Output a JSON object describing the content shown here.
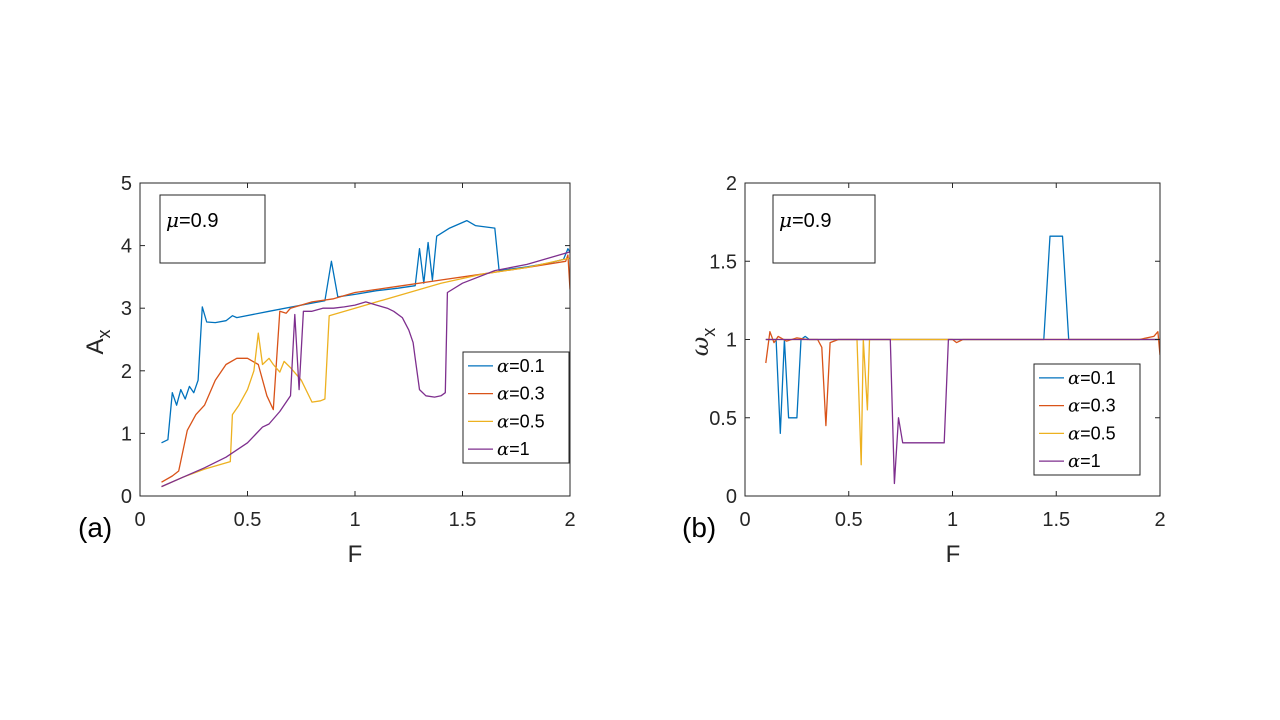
{
  "chart_data": [
    {
      "type": "line",
      "panel_label": "(a)",
      "xlabel": "F",
      "ylabel": "A",
      "ylabel_sub": "x",
      "xlim": [
        0,
        2
      ],
      "ylim": [
        0,
        5
      ],
      "xticks": [
        0,
        0.5,
        1,
        1.5,
        2
      ],
      "xtick_labels": [
        "0",
        "0.5",
        "1",
        "1.5",
        "2"
      ],
      "yticks": [
        0,
        1,
        2,
        3,
        4,
        5
      ],
      "ytick_labels": [
        "0",
        "1",
        "2",
        "3",
        "4",
        "5"
      ],
      "annotation": {
        "symbol": "μ",
        "text": "=0.9"
      },
      "legend_position": "lower-right",
      "series": [
        {
          "name": "α=0.1",
          "symbol": "α",
          "text": "=0.1",
          "color": "#0072BD",
          "points": [
            [
              0.1,
              0.85
            ],
            [
              0.13,
              0.9
            ],
            [
              0.15,
              1.65
            ],
            [
              0.17,
              1.45
            ],
            [
              0.19,
              1.7
            ],
            [
              0.21,
              1.55
            ],
            [
              0.23,
              1.75
            ],
            [
              0.25,
              1.65
            ],
            [
              0.27,
              1.85
            ],
            [
              0.29,
              3.02
            ],
            [
              0.31,
              2.78
            ],
            [
              0.35,
              2.77
            ],
            [
              0.4,
              2.8
            ],
            [
              0.43,
              2.88
            ],
            [
              0.45,
              2.85
            ],
            [
              0.6,
              2.95
            ],
            [
              0.75,
              3.05
            ],
            [
              0.86,
              3.12
            ],
            [
              0.89,
              3.75
            ],
            [
              0.92,
              3.18
            ],
            [
              1.0,
              3.22
            ],
            [
              1.1,
              3.28
            ],
            [
              1.2,
              3.32
            ],
            [
              1.28,
              3.36
            ],
            [
              1.3,
              3.95
            ],
            [
              1.32,
              3.4
            ],
            [
              1.34,
              4.05
            ],
            [
              1.36,
              3.45
            ],
            [
              1.38,
              4.15
            ],
            [
              1.44,
              4.28
            ],
            [
              1.52,
              4.4
            ],
            [
              1.56,
              4.32
            ],
            [
              1.65,
              4.28
            ],
            [
              1.67,
              3.6
            ],
            [
              1.8,
              3.66
            ],
            [
              1.9,
              3.72
            ],
            [
              1.97,
              3.78
            ],
            [
              1.99,
              3.95
            ],
            [
              2.0,
              3.9
            ]
          ]
        },
        {
          "name": "α=0.3",
          "symbol": "α",
          "text": "=0.3",
          "color": "#D95319",
          "points": [
            [
              0.1,
              0.22
            ],
            [
              0.15,
              0.32
            ],
            [
              0.18,
              0.4
            ],
            [
              0.22,
              1.05
            ],
            [
              0.26,
              1.3
            ],
            [
              0.3,
              1.45
            ],
            [
              0.35,
              1.85
            ],
            [
              0.4,
              2.1
            ],
            [
              0.45,
              2.2
            ],
            [
              0.5,
              2.2
            ],
            [
              0.55,
              2.1
            ],
            [
              0.59,
              1.6
            ],
            [
              0.62,
              1.38
            ],
            [
              0.65,
              2.95
            ],
            [
              0.68,
              2.92
            ],
            [
              0.7,
              3.0
            ],
            [
              0.8,
              3.1
            ],
            [
              0.9,
              3.15
            ],
            [
              1.0,
              3.25
            ],
            [
              1.2,
              3.35
            ],
            [
              1.4,
              3.45
            ],
            [
              1.6,
              3.55
            ],
            [
              1.8,
              3.65
            ],
            [
              1.98,
              3.75
            ],
            [
              1.99,
              3.85
            ],
            [
              2.0,
              3.3
            ]
          ]
        },
        {
          "name": "α=0.5",
          "symbol": "α",
          "text": "=0.5",
          "color": "#EDB120",
          "points": [
            [
              0.1,
              0.15
            ],
            [
              0.2,
              0.3
            ],
            [
              0.3,
              0.43
            ],
            [
              0.42,
              0.55
            ],
            [
              0.43,
              1.3
            ],
            [
              0.46,
              1.45
            ],
            [
              0.5,
              1.7
            ],
            [
              0.53,
              2.0
            ],
            [
              0.55,
              2.6
            ],
            [
              0.57,
              2.1
            ],
            [
              0.6,
              2.2
            ],
            [
              0.62,
              2.1
            ],
            [
              0.65,
              1.98
            ],
            [
              0.67,
              2.15
            ],
            [
              0.7,
              2.05
            ],
            [
              0.75,
              1.85
            ],
            [
              0.8,
              1.5
            ],
            [
              0.84,
              1.52
            ],
            [
              0.86,
              1.55
            ],
            [
              0.88,
              2.88
            ],
            [
              0.9,
              2.9
            ],
            [
              1.0,
              3.0
            ],
            [
              1.2,
              3.2
            ],
            [
              1.4,
              3.4
            ],
            [
              1.6,
              3.55
            ],
            [
              1.8,
              3.65
            ],
            [
              2.0,
              3.8
            ]
          ]
        },
        {
          "name": "α=1",
          "symbol": "α",
          "text": "=1",
          "color": "#7E2F8E",
          "points": [
            [
              0.1,
              0.15
            ],
            [
              0.2,
              0.3
            ],
            [
              0.3,
              0.45
            ],
            [
              0.4,
              0.62
            ],
            [
              0.5,
              0.85
            ],
            [
              0.57,
              1.1
            ],
            [
              0.6,
              1.15
            ],
            [
              0.65,
              1.35
            ],
            [
              0.7,
              1.6
            ],
            [
              0.72,
              2.9
            ],
            [
              0.74,
              1.7
            ],
            [
              0.76,
              2.95
            ],
            [
              0.8,
              2.95
            ],
            [
              0.85,
              3.0
            ],
            [
              0.9,
              3.0
            ],
            [
              0.95,
              3.02
            ],
            [
              1.0,
              3.05
            ],
            [
              1.05,
              3.1
            ],
            [
              1.1,
              3.05
            ],
            [
              1.15,
              3.0
            ],
            [
              1.18,
              2.95
            ],
            [
              1.22,
              2.85
            ],
            [
              1.25,
              2.65
            ],
            [
              1.27,
              2.45
            ],
            [
              1.28,
              2.2
            ],
            [
              1.3,
              1.7
            ],
            [
              1.33,
              1.6
            ],
            [
              1.37,
              1.58
            ],
            [
              1.4,
              1.6
            ],
            [
              1.42,
              1.65
            ],
            [
              1.43,
              3.25
            ],
            [
              1.5,
              3.4
            ],
            [
              1.65,
              3.6
            ],
            [
              1.8,
              3.7
            ],
            [
              1.9,
              3.8
            ],
            [
              2.0,
              3.9
            ]
          ]
        }
      ]
    },
    {
      "type": "line",
      "panel_label": "(b)",
      "xlabel": "F",
      "ylabel": "ω",
      "ylabel_sub": "x",
      "xlim": [
        0,
        2
      ],
      "ylim": [
        0,
        2
      ],
      "xticks": [
        0,
        0.5,
        1,
        1.5,
        2
      ],
      "xtick_labels": [
        "0",
        "0.5",
        "1",
        "1.5",
        "2"
      ],
      "yticks": [
        0,
        0.5,
        1,
        1.5,
        2
      ],
      "ytick_labels": [
        "0",
        "0.5",
        "1",
        "1.5",
        "2"
      ],
      "annotation": {
        "symbol": "μ",
        "text": "=0.9"
      },
      "legend_position": "lower-right",
      "series": [
        {
          "name": "α=0.1",
          "symbol": "α",
          "text": "=0.1",
          "color": "#0072BD",
          "points": [
            [
              0.1,
              1.0
            ],
            [
              0.13,
              1.0
            ],
            [
              0.15,
              1.0
            ],
            [
              0.17,
              0.4
            ],
            [
              0.19,
              1.0
            ],
            [
              0.21,
              0.5
            ],
            [
              0.25,
              0.5
            ],
            [
              0.27,
              1.0
            ],
            [
              0.29,
              1.02
            ],
            [
              0.31,
              1.0
            ],
            [
              1.44,
              1.0
            ],
            [
              1.47,
              1.66
            ],
            [
              1.53,
              1.66
            ],
            [
              1.56,
              1.0
            ],
            [
              2.0,
              1.0
            ]
          ]
        },
        {
          "name": "α=0.3",
          "symbol": "α",
          "text": "=0.3",
          "color": "#D95319",
          "points": [
            [
              0.1,
              0.85
            ],
            [
              0.12,
              1.05
            ],
            [
              0.14,
              0.98
            ],
            [
              0.16,
              1.02
            ],
            [
              0.2,
              0.99
            ],
            [
              0.25,
              1.01
            ],
            [
              0.3,
              1.0
            ],
            [
              0.35,
              1.0
            ],
            [
              0.37,
              0.95
            ],
            [
              0.39,
              0.45
            ],
            [
              0.41,
              0.98
            ],
            [
              0.45,
              1.0
            ],
            [
              1.0,
              1.0
            ],
            [
              1.02,
              0.98
            ],
            [
              1.05,
              1.0
            ],
            [
              1.9,
              1.0
            ],
            [
              1.97,
              1.02
            ],
            [
              1.99,
              1.05
            ],
            [
              2.0,
              0.9
            ]
          ]
        },
        {
          "name": "α=0.5",
          "symbol": "α",
          "text": "=0.5",
          "color": "#EDB120",
          "points": [
            [
              0.1,
              1.0
            ],
            [
              0.54,
              1.0
            ],
            [
              0.56,
              0.2
            ],
            [
              0.57,
              1.0
            ],
            [
              0.59,
              0.55
            ],
            [
              0.6,
              1.0
            ],
            [
              2.0,
              1.0
            ]
          ]
        },
        {
          "name": "α=1",
          "symbol": "α",
          "text": "=1",
          "color": "#7E2F8E",
          "points": [
            [
              0.1,
              1.0
            ],
            [
              0.7,
              1.0
            ],
            [
              0.72,
              0.08
            ],
            [
              0.74,
              0.5
            ],
            [
              0.76,
              0.34
            ],
            [
              0.96,
              0.34
            ],
            [
              0.98,
              1.0
            ],
            [
              2.0,
              1.0
            ]
          ]
        }
      ]
    }
  ]
}
